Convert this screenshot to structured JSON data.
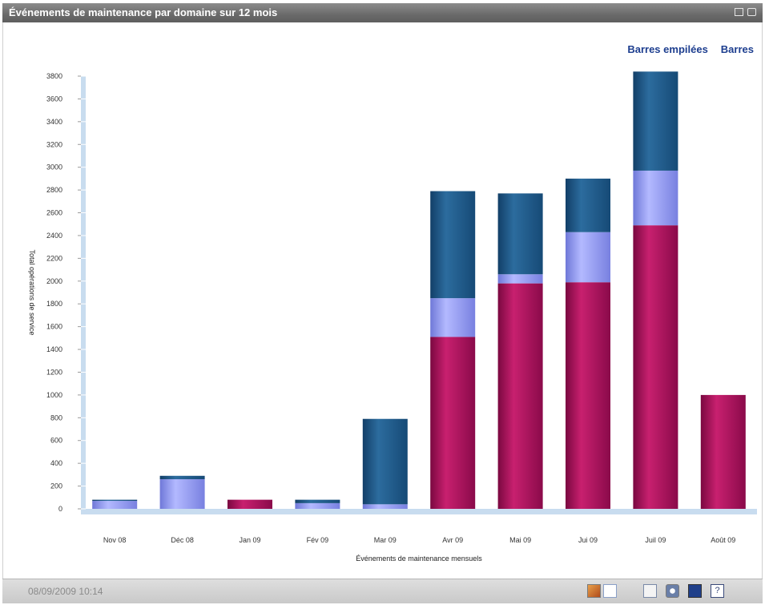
{
  "window": {
    "title": "Événements de maintenance par domaine sur 12 mois"
  },
  "view_links": {
    "stacked": "Barres empilées",
    "bars": "Barres"
  },
  "footer": {
    "timestamp": "08/09/2009 10:14"
  },
  "icons": [
    "restore-icon",
    "popout-icon",
    "chart-view-icon",
    "table-view-icon",
    "export-icon",
    "refresh-icon",
    "open-external-icon",
    "help-icon"
  ],
  "colors": {
    "series_a": "#b01060",
    "series_b": "#8f97ee",
    "series_c": "#1e5a8c",
    "link": "#1d3e8f"
  },
  "chart_data": {
    "type": "bar",
    "stacked": true,
    "categories": [
      "Nov 08",
      "Déc 08",
      "Jan 09",
      "Fév 09",
      "Mar 09",
      "Avr 09",
      "Mai 09",
      "Jui 09",
      "Juil 09",
      "Août 09"
    ],
    "series": [
      {
        "color": "#b01060",
        "values": [
          0,
          0,
          80,
          0,
          0,
          1510,
          1980,
          1990,
          2490,
          1000
        ]
      },
      {
        "color": "#8f97ee",
        "values": [
          70,
          260,
          0,
          50,
          40,
          340,
          80,
          440,
          480,
          0
        ]
      },
      {
        "color": "#1e5a8c",
        "values": [
          10,
          30,
          0,
          30,
          750,
          940,
          710,
          470,
          870,
          0
        ]
      }
    ],
    "xlabel": "Événements de maintenance mensuels",
    "ylabel": "Total opérations de service",
    "ylim": [
      0,
      3800
    ],
    "yticks": [
      0,
      200,
      400,
      600,
      800,
      1000,
      1200,
      1400,
      1600,
      1800,
      2000,
      2200,
      2400,
      2600,
      2800,
      3000,
      3200,
      3400,
      3600,
      3800
    ],
    "legend": "none",
    "grid": false
  }
}
